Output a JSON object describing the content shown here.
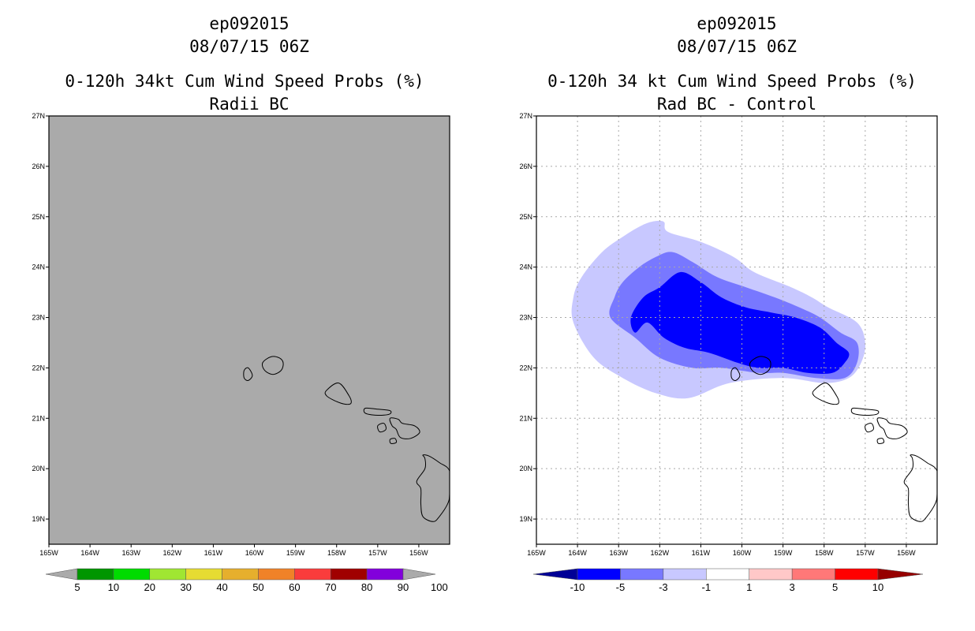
{
  "chart_data": [
    {
      "type": "heatmap",
      "storm": "ep092015",
      "datetime": "08/07/15 06Z",
      "title": "0-120h 34kt Cum Wind Speed Probs (%)",
      "subtitle": "Radii BC",
      "xlim": [
        -165,
        -155.25
      ],
      "ylim": [
        18.5,
        27
      ],
      "x_ticks": [
        "165W",
        "164W",
        "163W",
        "162W",
        "161W",
        "160W",
        "159W",
        "158W",
        "157W",
        "156W"
      ],
      "y_ticks": [
        "19N",
        "20N",
        "21N",
        "22N",
        "23N",
        "24N",
        "25N",
        "26N",
        "27N"
      ],
      "field": "uniform",
      "field_color": "#aaaaaa",
      "grid": false,
      "colorbar": {
        "labels": [
          "5",
          "10",
          "20",
          "30",
          "40",
          "50",
          "60",
          "70",
          "80",
          "90",
          "100"
        ],
        "colors": [
          "#009600",
          "#00dc00",
          "#a0e632",
          "#e6dc32",
          "#e6af2d",
          "#f08228",
          "#fa3c3c",
          "#a00000",
          "#8200dc"
        ],
        "arrow_left": "#aaaaaa",
        "arrow_right": "#aaaaaa"
      }
    },
    {
      "type": "heatmap",
      "storm": "ep092015",
      "datetime": "08/07/15 06Z",
      "title": "0-120h 34 kt Cum Wind Speed Probs (%)",
      "subtitle": "Rad BC - Control",
      "xlim": [
        -165,
        -155.25
      ],
      "ylim": [
        18.5,
        27
      ],
      "x_ticks": [
        "165W",
        "164W",
        "163W",
        "162W",
        "161W",
        "160W",
        "159W",
        "158W",
        "157W",
        "156W"
      ],
      "y_ticks": [
        "19N",
        "20N",
        "21N",
        "22N",
        "23N",
        "24N",
        "25N",
        "26N",
        "27N"
      ],
      "grid": true,
      "contours": [
        {
          "level": "-1 to -3",
          "color": "#c8c8ff",
          "lon": [
            -164.1,
            -164.1,
            -163.9,
            -163.4,
            -162.9,
            -162.5,
            -162.2,
            -161.9,
            -161.8,
            -161.0,
            -160.2,
            -159.7,
            -158.8,
            -158.3,
            -157.9,
            -157.2,
            -157.0,
            -157.1,
            -157.4,
            -158.0,
            -159.0,
            -160.3,
            -161.3,
            -162.1,
            -162.9,
            -163.6
          ],
          "lat": [
            22.9,
            23.4,
            23.8,
            24.3,
            24.6,
            24.8,
            24.9,
            24.9,
            24.7,
            24.5,
            24.2,
            23.9,
            23.6,
            23.4,
            23.2,
            22.9,
            22.5,
            22.1,
            21.8,
            21.7,
            21.8,
            21.7,
            21.4,
            21.5,
            21.8,
            22.2
          ]
        },
        {
          "level": "-3 to -5",
          "color": "#7878ff",
          "lon": [
            -163.2,
            -163.1,
            -162.9,
            -162.5,
            -162.1,
            -161.7,
            -161.2,
            -160.6,
            -159.9,
            -159.2,
            -158.6,
            -158.1,
            -157.6,
            -157.2,
            -157.2,
            -157.5,
            -158.2,
            -159.0,
            -159.6,
            -160.5,
            -161.2,
            -162.0,
            -162.6
          ],
          "lat": [
            23.0,
            23.4,
            23.7,
            24.0,
            24.2,
            24.3,
            24.1,
            23.8,
            23.6,
            23.4,
            23.2,
            23.0,
            22.7,
            22.5,
            22.1,
            21.8,
            21.8,
            21.9,
            21.9,
            22.0,
            22.0,
            22.2,
            22.6
          ]
        },
        {
          "level": "-5 to -10",
          "color": "#0000ff",
          "lon": [
            -162.7,
            -162.4,
            -162.0,
            -161.5,
            -161.0,
            -160.5,
            -159.9,
            -159.3,
            -158.7,
            -158.1,
            -157.7,
            -157.4,
            -157.5,
            -157.8,
            -158.4,
            -159.0,
            -159.6,
            -160.1,
            -160.8,
            -161.4,
            -161.9,
            -162.3,
            -162.6
          ],
          "lat": [
            23.0,
            23.4,
            23.6,
            23.9,
            23.7,
            23.4,
            23.2,
            23.1,
            23.0,
            22.8,
            22.5,
            22.3,
            22.1,
            21.9,
            21.9,
            22.0,
            22.0,
            22.1,
            22.3,
            22.4,
            22.6,
            22.9,
            22.7
          ]
        }
      ],
      "colorbar": {
        "labels": [
          "-10",
          "-5",
          "-3",
          "-1",
          "1",
          "3",
          "5",
          "10"
        ],
        "colors": [
          "#0000ff",
          "#7878ff",
          "#c8c8ff",
          "#ffffff",
          "#ffc8c8",
          "#ff7878",
          "#ff0000"
        ],
        "arrow_left": "#000096",
        "arrow_right": "#960000"
      }
    }
  ]
}
